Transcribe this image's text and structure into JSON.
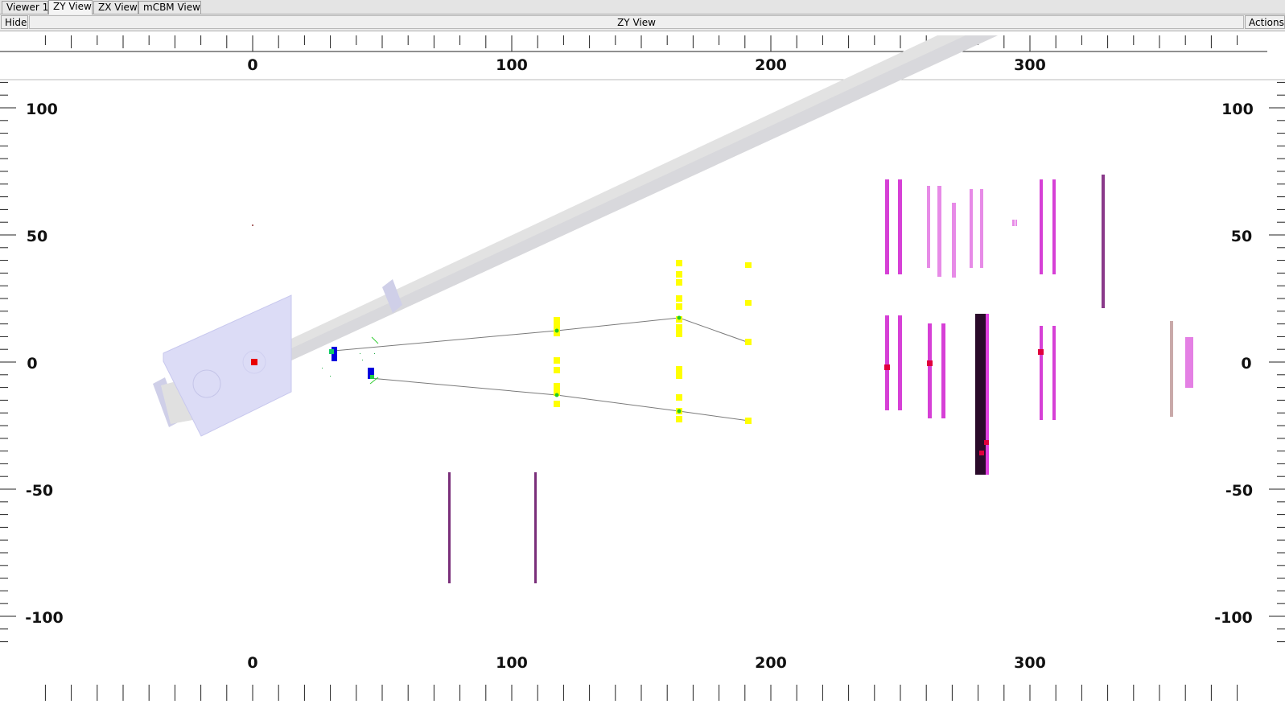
{
  "tabs": [
    {
      "label": "Viewer 1",
      "active": false
    },
    {
      "label": "ZY View",
      "active": true
    },
    {
      "label": "ZX View",
      "active": false
    },
    {
      "label": "mCBM View",
      "active": false
    }
  ],
  "toolbar": {
    "hide_label": "Hide",
    "title": "ZY View",
    "actions_label": "Actions"
  },
  "axes": {
    "z_labels": [
      "0",
      "100",
      "200",
      "300"
    ],
    "y_labels": [
      "100",
      "50",
      "0",
      "-50",
      "-100"
    ]
  },
  "colors": {
    "beampipe": "#dedede",
    "target_box": "#dcdcf6",
    "sts_hits": "#ffff00",
    "tracks": "#808080",
    "mvd": "#0000dd",
    "tof": "#dd33dd",
    "rich": "#7a2f7a",
    "hit_marker": "#e0003c",
    "track_point": "#22cc22"
  }
}
